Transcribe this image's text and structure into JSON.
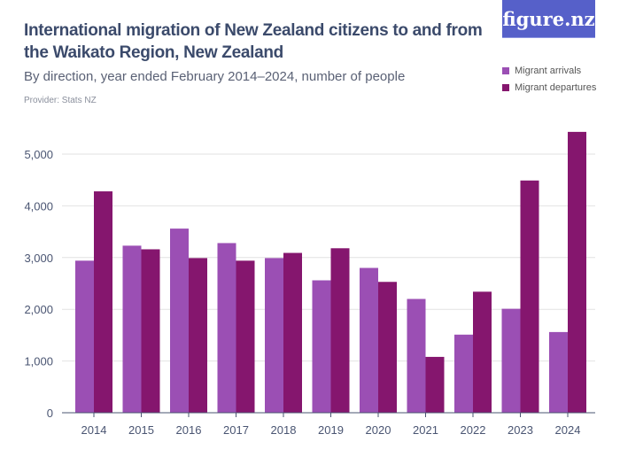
{
  "header": {
    "title": "International migration of New Zealand citizens to and from the Waikato Region, New Zealand",
    "subtitle": "By direction, year ended February 2014–2024, number of people",
    "provider": "Provider: Stats NZ",
    "logo": "figure.nz"
  },
  "chart_data": {
    "type": "bar",
    "title": "International migration of New Zealand citizens to and from the Waikato Region, New Zealand",
    "subtitle": "By direction, year ended February 2014–2024, number of people",
    "categories": [
      "2014",
      "2015",
      "2016",
      "2017",
      "2018",
      "2019",
      "2020",
      "2021",
      "2022",
      "2023",
      "2024"
    ],
    "series": [
      {
        "name": "Migrant arrivals",
        "color": "#9b4fb4",
        "values": [
          2940,
          3230,
          3560,
          3280,
          2990,
          2560,
          2800,
          2200,
          1510,
          2010,
          1560
        ]
      },
      {
        "name": "Migrant departures",
        "color": "#85166e",
        "values": [
          4280,
          3160,
          2990,
          2940,
          3090,
          3180,
          2530,
          1080,
          2340,
          4490,
          5430
        ]
      }
    ],
    "ylim": [
      0,
      5500
    ],
    "yticks": [
      0,
      1000,
      2000,
      3000,
      4000,
      5000
    ],
    "ytick_labels": [
      "0",
      "1,000",
      "2,000",
      "3,000",
      "4,000",
      "5,000"
    ],
    "grid": true,
    "legend": "top-right"
  }
}
